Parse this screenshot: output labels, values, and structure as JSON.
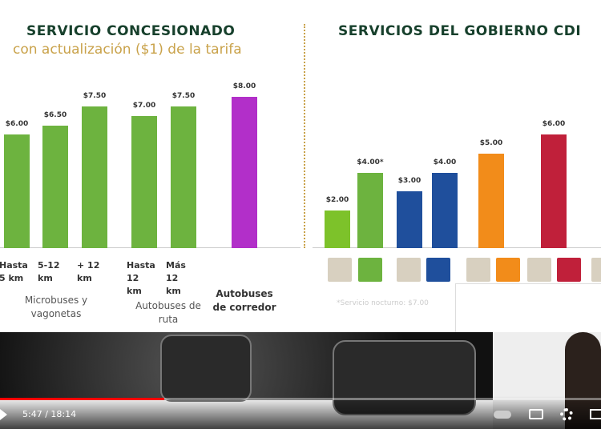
{
  "chart_data": [
    {
      "type": "bar",
      "title": "SERVICIO CONCESIONADO",
      "subtitle": "con actualización ($1) de la tarifa",
      "categories": [
        "Hasta 5 km",
        "5-12 km",
        "+ 12 km",
        "Hasta 12 km",
        "Más 12 km",
        null
      ],
      "values": [
        6,
        6.5,
        7.5,
        7,
        7.5,
        8
      ],
      "value_labels": [
        "$6.00",
        "$6.50",
        "$7.50",
        "$7.00",
        "$7.50",
        "$8.00"
      ],
      "colors": [
        "#6db33f",
        "#6db33f",
        "#6db33f",
        "#6db33f",
        "#6db33f",
        "#b22fc9"
      ],
      "groups": [
        "Microbuses y vagonetas",
        "Autobuses de ruta",
        "Autobuses de corredor"
      ]
    },
    {
      "type": "bar",
      "title": "SERVICIOS DEL GOBIERNO CDI",
      "categories": [
        null,
        null,
        null,
        null,
        null,
        null
      ],
      "values": [
        2,
        4,
        3,
        4,
        5,
        6
      ],
      "value_labels": [
        "$2.00",
        "$4.00*",
        "$3.00",
        "$4.00",
        "$5.00",
        "$6.00"
      ],
      "colors": [
        "#7dc22a",
        "#6db33f",
        "#1f4f9c",
        "#1f4f9c",
        "#f28c1a",
        "#c0203a"
      ],
      "note": "*Servicio nocturno: $7.00"
    }
  ],
  "player": {
    "time": "5:47 / 18:14"
  }
}
